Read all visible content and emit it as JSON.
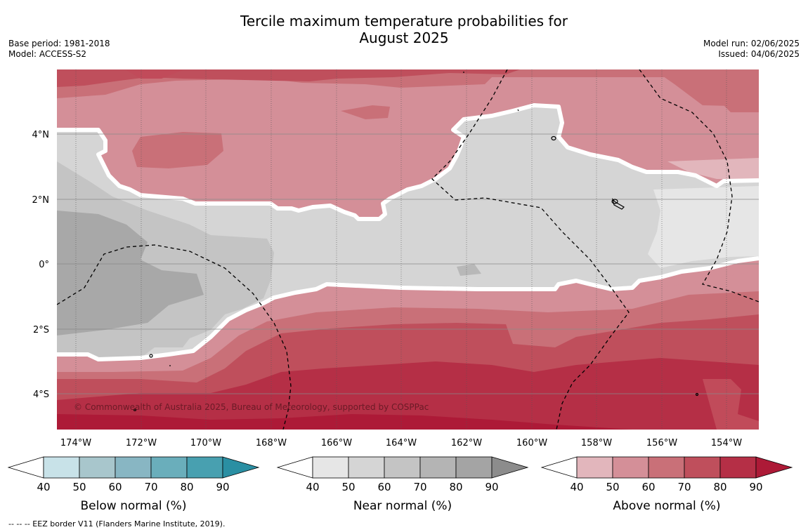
{
  "title": {
    "line1": "Tercile maximum temperature probabilities for",
    "line2": "August 2025"
  },
  "meta_left": {
    "base_period": "Base period: 1981-2018",
    "model": "Model: ACCESS-S2"
  },
  "meta_right": {
    "model_run": "Model run: 02/06/2025",
    "issued": "Issued: 04/06/2025"
  },
  "map": {
    "lat_labels": [
      "4°N",
      "2°N",
      "0°",
      "2°S",
      "4°S"
    ],
    "lon_labels": [
      "174°W",
      "172°W",
      "170°W",
      "168°W",
      "166°W",
      "164°W",
      "162°W",
      "160°W",
      "158°W",
      "156°W",
      "154°W"
    ],
    "copyright": "© Commonwealth of Australia 2025, Bureau of Meteorology, supported by COSPPac"
  },
  "colorbars": [
    {
      "title": "Below normal (%)",
      "ticks": [
        "40",
        "50",
        "60",
        "70",
        "80",
        "90"
      ],
      "colors": [
        "#c8e2e8",
        "#a8c6cc",
        "#88b6c3",
        "#6aaebb",
        "#48a0b0",
        "#2a8fa3"
      ]
    },
    {
      "title": "Near normal (%)",
      "ticks": [
        "40",
        "50",
        "60",
        "70",
        "80",
        "90"
      ],
      "colors": [
        "#e6e6e6",
        "#d5d5d5",
        "#c4c4c4",
        "#b4b4b4",
        "#a4a4a4",
        "#8c8c8c"
      ]
    },
    {
      "title": "Above normal (%)",
      "ticks": [
        "40",
        "50",
        "60",
        "70",
        "80",
        "90"
      ],
      "colors": [
        "#e2b6bc",
        "#d48f98",
        "#c97078",
        "#bf4f5c",
        "#b52f46",
        "#ad1a37"
      ]
    }
  ],
  "eez_note": "--  --  -- EEZ border V11 (Flanders Marine Institute, 2019)."
}
